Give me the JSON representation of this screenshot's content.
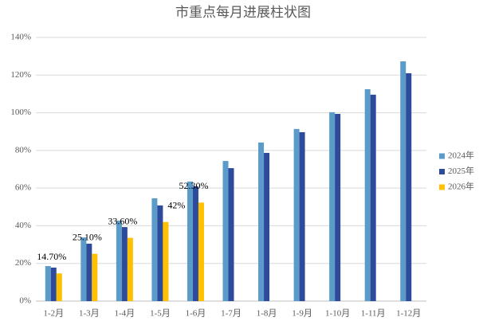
{
  "chart_data": {
    "type": "bar",
    "title": "市重点每月进展柱状图",
    "categories": [
      "1-2月",
      "1-3月",
      "1-4月",
      "1-5月",
      "1-6月",
      "1-7月",
      "1-8月",
      "1-9月",
      "1-10月",
      "1-11月",
      "1-12月"
    ],
    "series": [
      {
        "name": "2024年",
        "color": "#5b9bc9",
        "values": [
          18.6,
          33.8,
          42.7,
          54.6,
          63.5,
          74.4,
          84.2,
          91.4,
          100.3,
          112.5,
          127.3
        ]
      },
      {
        "name": "2025年",
        "color": "#2e4a9b",
        "values": [
          17.8,
          30.5,
          39.3,
          50.8,
          60.9,
          70.6,
          78.7,
          89.7,
          99.4,
          109.6,
          121
        ]
      },
      {
        "name": "2026年",
        "color": "#ffc000",
        "values": [
          14.7,
          25.1,
          33.6,
          42,
          52.3,
          null,
          null,
          null,
          null,
          null,
          null
        ],
        "value_labels": [
          "14.70%",
          "25.10%",
          "33.60%",
          "42%",
          "52.30%",
          null,
          null,
          null,
          null,
          null,
          null
        ]
      }
    ],
    "ylim": [
      0,
      140
    ],
    "yticks": [
      {
        "value": 0,
        "label": "0%"
      },
      {
        "value": 20,
        "label": "20%"
      },
      {
        "value": 40,
        "label": "40%"
      },
      {
        "value": 60,
        "label": "60%"
      },
      {
        "value": 80,
        "label": "80%"
      },
      {
        "value": 100,
        "label": "100%"
      },
      {
        "value": 120,
        "label": "120%"
      },
      {
        "value": 140,
        "label": "140%"
      }
    ],
    "grid": true,
    "legend": "right"
  }
}
